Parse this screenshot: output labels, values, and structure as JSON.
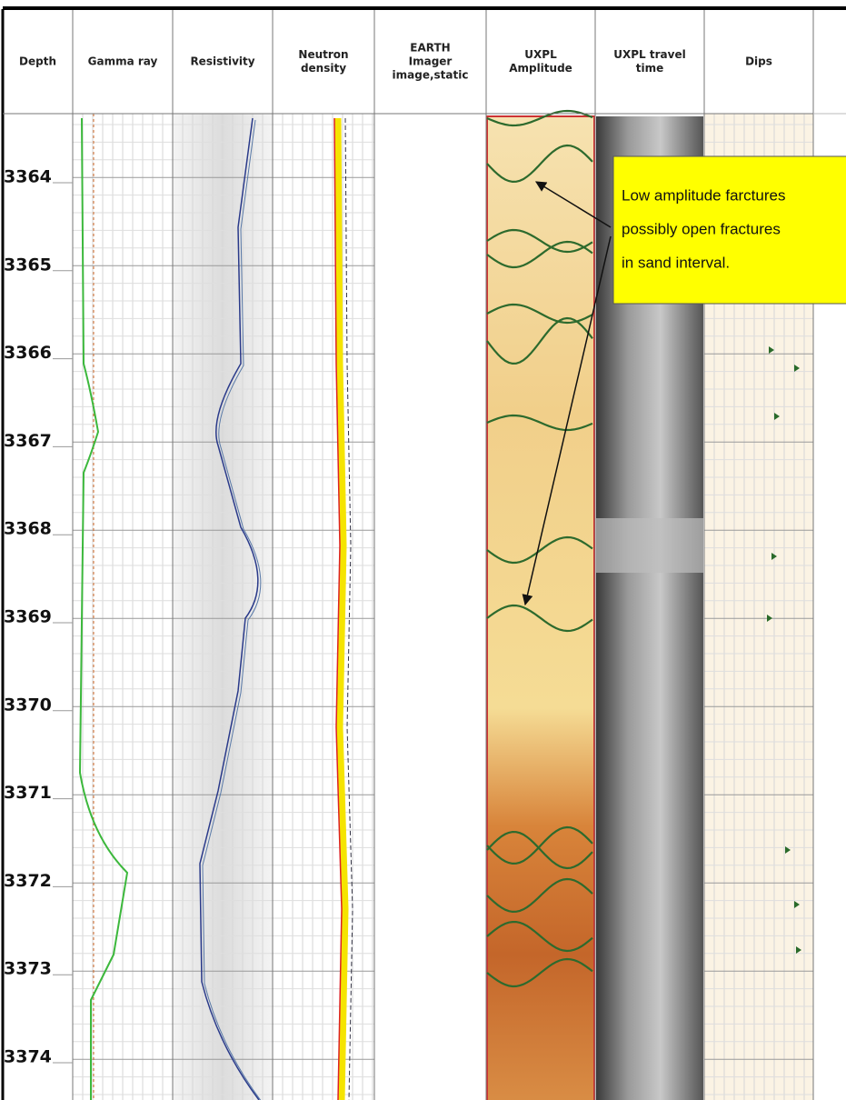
{
  "header": {
    "columns": [
      [
        "Depth"
      ],
      [
        "Gamma ray"
      ],
      [
        "Resistivity"
      ],
      [
        "Neutron",
        "density"
      ],
      [
        "EARTH",
        "Imager",
        "image,static"
      ],
      [
        "UXPL",
        "Amplitude"
      ],
      [
        "UXPL travel",
        "time"
      ],
      [
        "Dips"
      ]
    ]
  },
  "depths": [
    "3364",
    "3365",
    "3366",
    "3367",
    "3368",
    "3369",
    "3370",
    "3371",
    "3372",
    "3373",
    "3374"
  ],
  "annotation": {
    "lines": [
      "Low amplitude farctures",
      "possibly open fractures",
      "in sand interval."
    ]
  }
}
